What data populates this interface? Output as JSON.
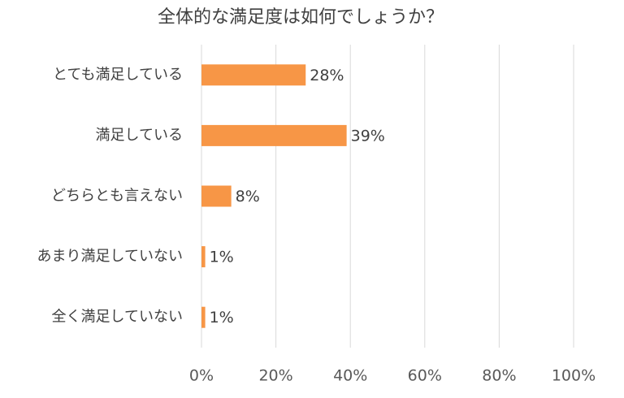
{
  "chart_data": {
    "type": "bar",
    "orientation": "horizontal",
    "title": "全体的な満足度は如何でしょうか？",
    "categories": [
      "とても満足している",
      "満足している",
      "どちらとも言えない",
      "あまり満足していない",
      "全く満足していない"
    ],
    "values": [
      28,
      39,
      8,
      1,
      1
    ],
    "value_labels": [
      "28%",
      "39%",
      "8%",
      "1%",
      "1%"
    ],
    "color": "#f79646",
    "xlim": [
      0,
      100
    ],
    "xticks": [
      {
        "value": 0,
        "label": "0%"
      },
      {
        "value": 20,
        "label": "20%"
      },
      {
        "value": 40,
        "label": "40%"
      },
      {
        "value": 60,
        "label": "60%"
      },
      {
        "value": 80,
        "label": "80%"
      },
      {
        "value": 100,
        "label": "100%"
      }
    ],
    "grid": true
  }
}
